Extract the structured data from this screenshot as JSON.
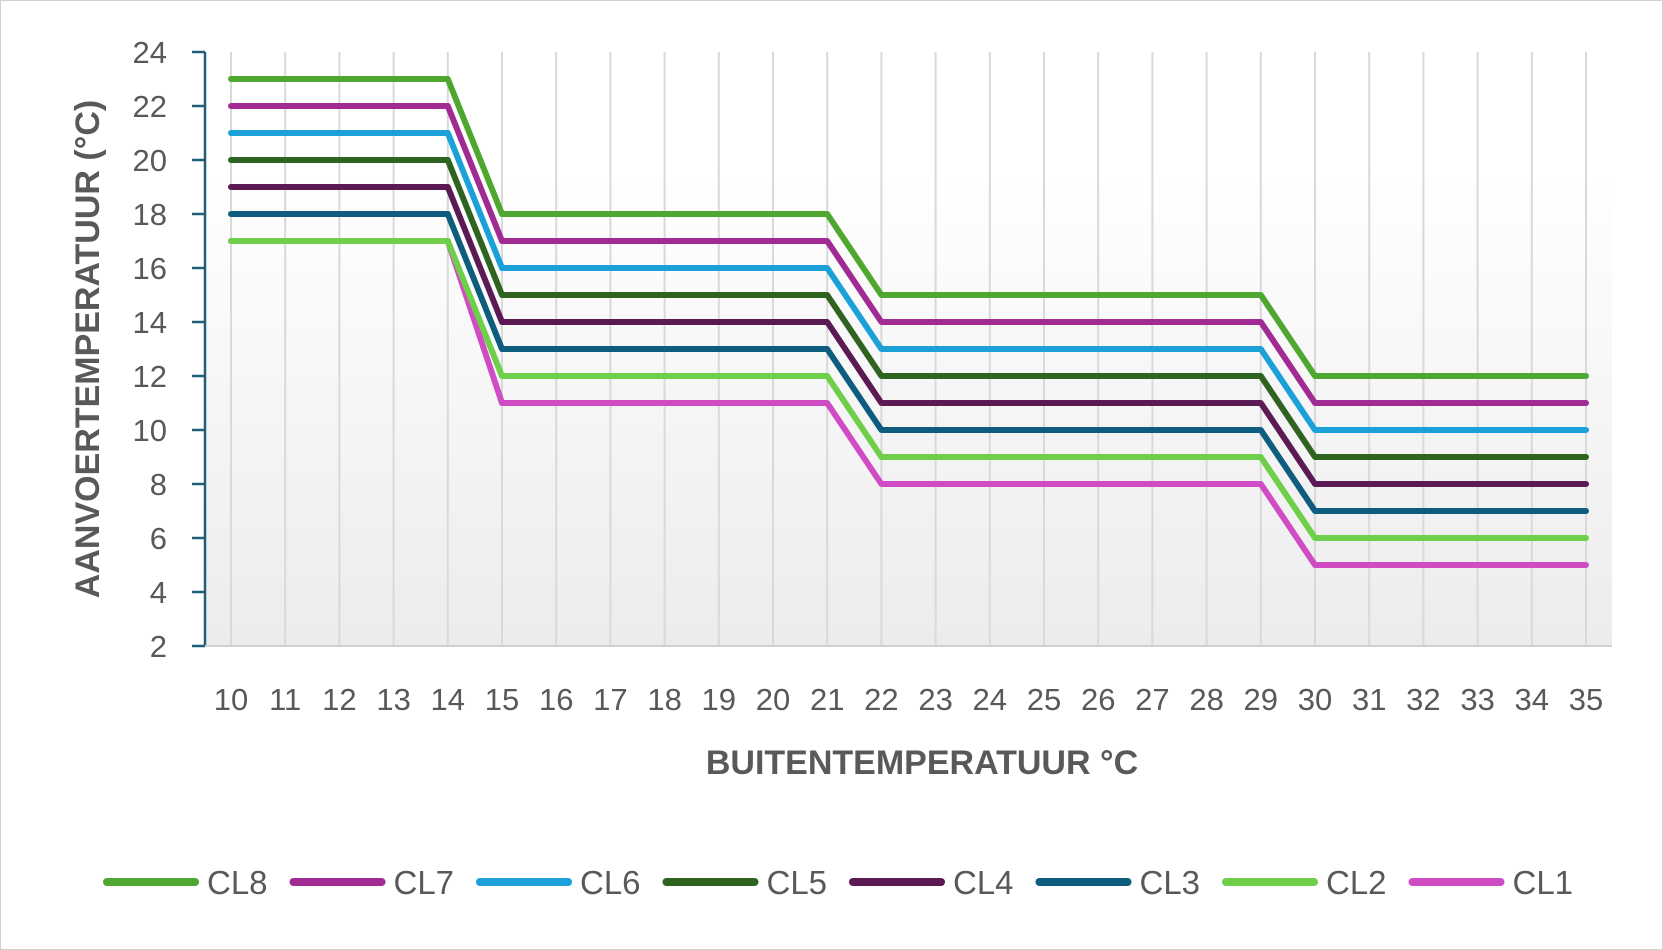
{
  "chart_data": {
    "type": "line",
    "xlabel": "BUITENTEMPERATUUR °C",
    "ylabel": "AANVOERTEMPERATUUR (°C)",
    "x": [
      10,
      11,
      12,
      13,
      14,
      15,
      16,
      17,
      18,
      19,
      20,
      21,
      22,
      23,
      24,
      25,
      26,
      27,
      28,
      29,
      30,
      31,
      32,
      33,
      34,
      35
    ],
    "ylim": [
      2,
      24
    ],
    "yticks": [
      2,
      4,
      6,
      8,
      10,
      12,
      14,
      16,
      18,
      20,
      22,
      24
    ],
    "grid": "vertical",
    "legend": "bottom",
    "series": [
      {
        "name": "CL8",
        "color": "#4ea72e",
        "values": [
          23,
          23,
          23,
          23,
          23,
          18,
          18,
          18,
          18,
          18,
          18,
          18,
          15,
          15,
          15,
          15,
          15,
          15,
          15,
          15,
          12,
          12,
          12,
          12,
          12,
          12
        ]
      },
      {
        "name": "CL7",
        "color": "#a02b93",
        "values": [
          22,
          22,
          22,
          22,
          22,
          17,
          17,
          17,
          17,
          17,
          17,
          17,
          14,
          14,
          14,
          14,
          14,
          14,
          14,
          14,
          11,
          11,
          11,
          11,
          11,
          11
        ]
      },
      {
        "name": "CL6",
        "color": "#1ca0d8",
        "values": [
          21,
          21,
          21,
          21,
          21,
          16,
          16,
          16,
          16,
          16,
          16,
          16,
          13,
          13,
          13,
          13,
          13,
          13,
          13,
          13,
          10,
          10,
          10,
          10,
          10,
          10
        ]
      },
      {
        "name": "CL5",
        "color": "#2e6320",
        "values": [
          20,
          20,
          20,
          20,
          20,
          15,
          15,
          15,
          15,
          15,
          15,
          15,
          12,
          12,
          12,
          12,
          12,
          12,
          12,
          12,
          9,
          9,
          9,
          9,
          9,
          9
        ]
      },
      {
        "name": "CL4",
        "color": "#5c1a55",
        "values": [
          19,
          19,
          19,
          19,
          19,
          14,
          14,
          14,
          14,
          14,
          14,
          14,
          11,
          11,
          11,
          11,
          11,
          11,
          11,
          11,
          8,
          8,
          8,
          8,
          8,
          8
        ]
      },
      {
        "name": "CL3",
        "color": "#0e5c7e",
        "values": [
          18,
          18,
          18,
          18,
          18,
          13,
          13,
          13,
          13,
          13,
          13,
          13,
          10,
          10,
          10,
          10,
          10,
          10,
          10,
          10,
          7,
          7,
          7,
          7,
          7,
          7
        ]
      },
      {
        "name": "CL2",
        "color": "#6fcf4a",
        "values": [
          17,
          17,
          17,
          17,
          17,
          12,
          12,
          12,
          12,
          12,
          12,
          12,
          9,
          9,
          9,
          9,
          9,
          9,
          9,
          9,
          6,
          6,
          6,
          6,
          6,
          6
        ]
      },
      {
        "name": "CL1",
        "color": "#cf4cc4",
        "values": [
          17,
          17,
          17,
          17,
          17,
          11,
          11,
          11,
          11,
          11,
          11,
          11,
          8,
          8,
          8,
          8,
          8,
          8,
          8,
          8,
          5,
          5,
          5,
          5,
          5,
          5
        ]
      }
    ]
  }
}
